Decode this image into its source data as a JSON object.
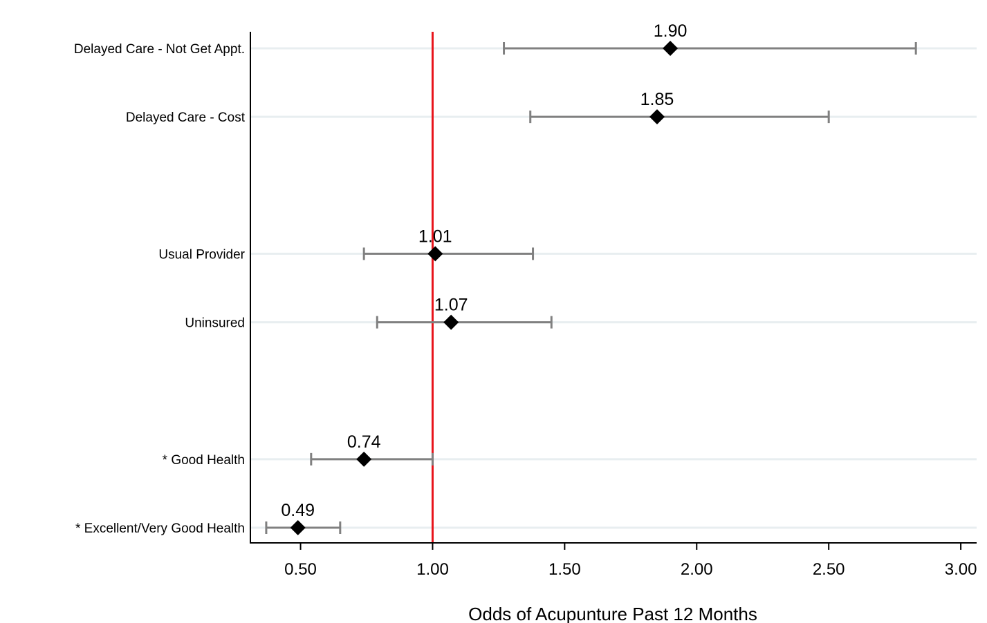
{
  "chart_data": {
    "type": "forest",
    "xlabel": "Odds of Acupunture Past 12 Months",
    "xlim": [
      0.31,
      3.06
    ],
    "xticks": [
      "0.50",
      "1.00",
      "1.50",
      "2.00",
      "2.50",
      "3.00"
    ],
    "xtick_values": [
      0.5,
      1.0,
      1.5,
      2.0,
      2.5,
      3.0
    ],
    "reference_line": 1.0,
    "grid": true,
    "colors": {
      "reference_line": "#e8141b",
      "ci": "#808080",
      "marker": "#000000",
      "gridline": "#e8eef0",
      "background": "#ffffff",
      "frame": "#eaf0f3"
    },
    "rows": [
      {
        "label": "Delayed Care - Not Get Appt.",
        "estimate": 1.9,
        "estimate_label": "1.90",
        "ci_low": 1.27,
        "ci_high": 2.83
      },
      {
        "label": "Delayed Care - Cost",
        "estimate": 1.85,
        "estimate_label": "1.85",
        "ci_low": 1.37,
        "ci_high": 2.5
      },
      {
        "label": "Usual Provider",
        "estimate": 1.01,
        "estimate_label": "1.01",
        "ci_low": 0.74,
        "ci_high": 1.38
      },
      {
        "label": "Uninsured",
        "estimate": 1.07,
        "estimate_label": "1.07",
        "ci_low": 0.79,
        "ci_high": 1.45
      },
      {
        "label": "* Good Health",
        "estimate": 0.74,
        "estimate_label": "0.74",
        "ci_low": 0.54,
        "ci_high": 1.0
      },
      {
        "label": "* Excellent/Very Good Health",
        "estimate": 0.49,
        "estimate_label": "0.49",
        "ci_low": 0.37,
        "ci_high": 0.65
      }
    ],
    "row_slots": [
      0,
      1,
      3,
      4,
      6,
      7
    ],
    "slot_count": 8
  }
}
